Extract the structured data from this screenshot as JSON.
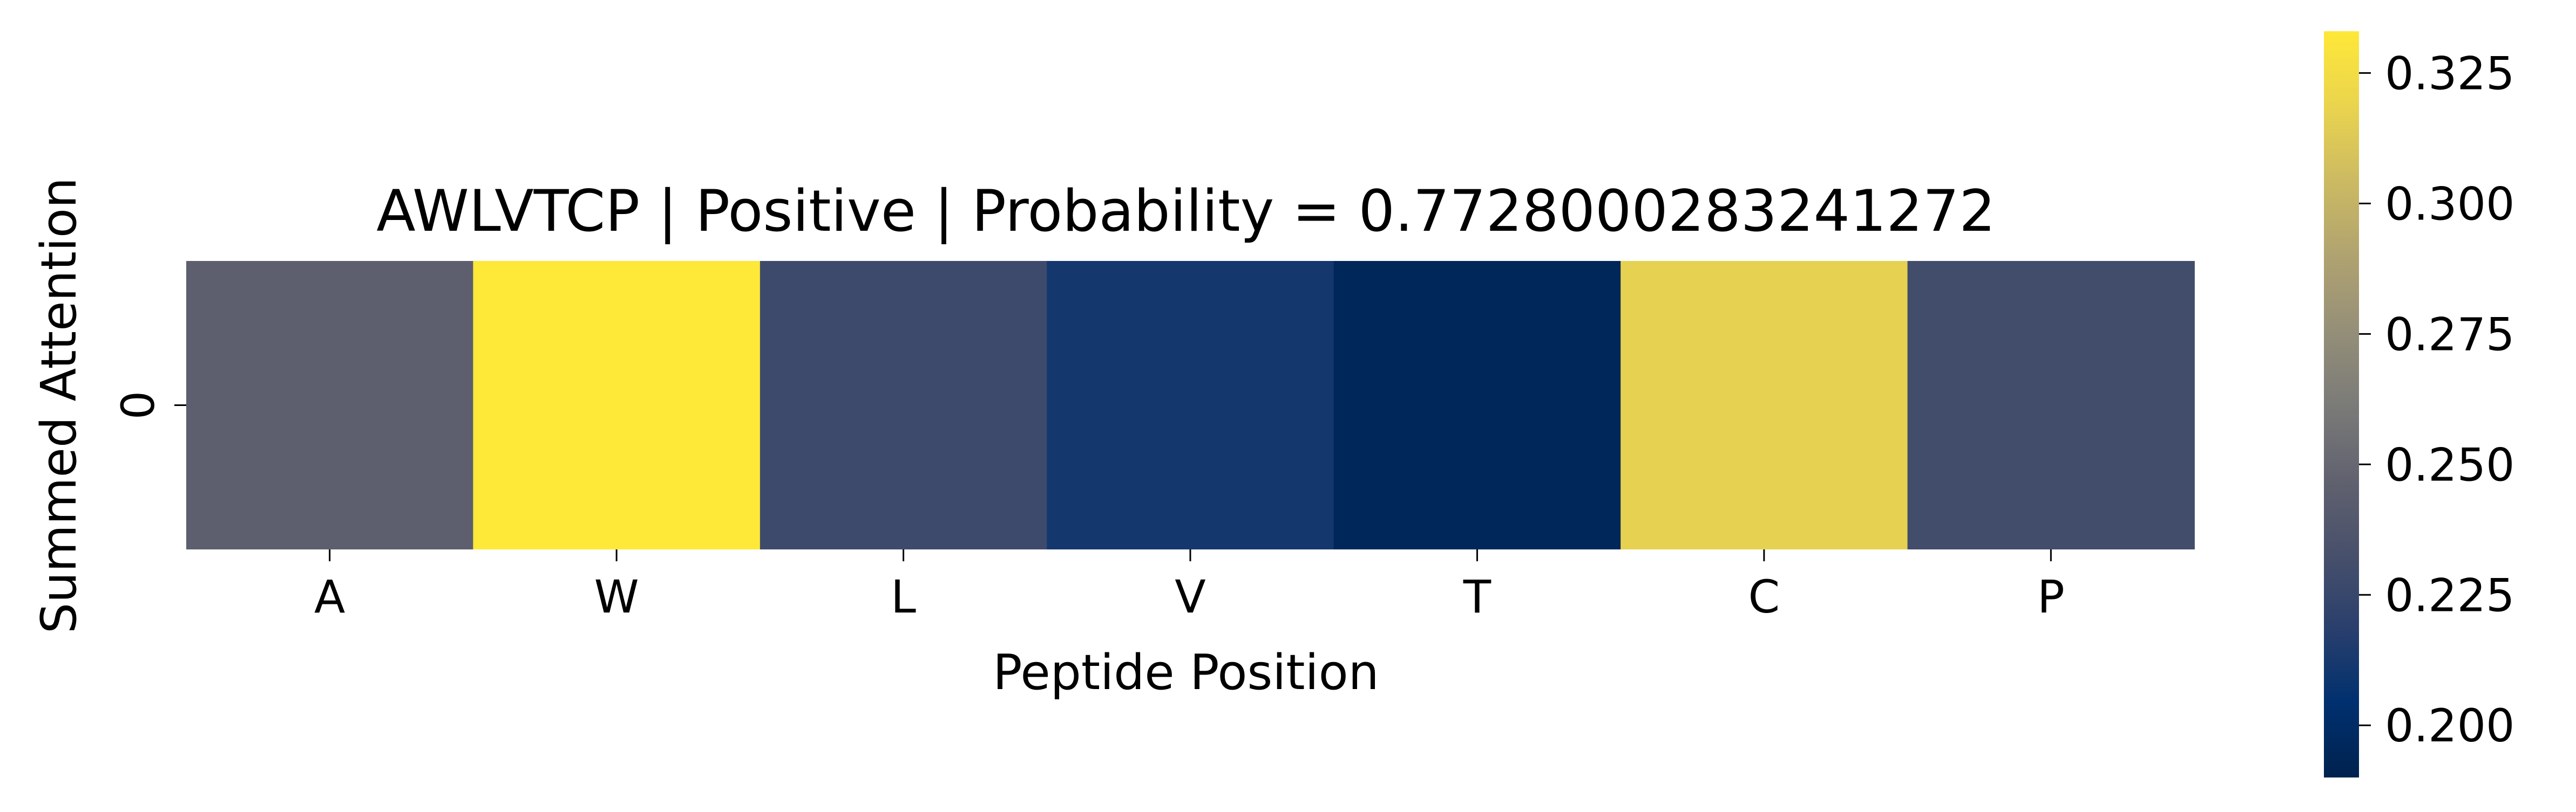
{
  "chart_data": {
    "type": "heatmap",
    "title": "AWLVTCP | Positive | Probability = 0.7728000283241272",
    "xlabel": "Peptide Position",
    "ylabel": "Summed Attention",
    "x_categories": [
      "A",
      "W",
      "L",
      "V",
      "T",
      "C",
      "P"
    ],
    "y_categories": [
      "0"
    ],
    "values": [
      [
        0.245,
        0.333,
        0.228,
        0.211,
        0.195,
        0.317,
        0.23
      ]
    ],
    "colormap": "cividis",
    "colorbar": {
      "range": [
        0.19,
        0.333
      ],
      "ticks": [
        0.2,
        0.225,
        0.25,
        0.275,
        0.3,
        0.325
      ],
      "tick_labels": [
        "0.200",
        "0.225",
        "0.250",
        "0.275",
        "0.300",
        "0.325"
      ],
      "placement": "right"
    },
    "grid": false
  }
}
